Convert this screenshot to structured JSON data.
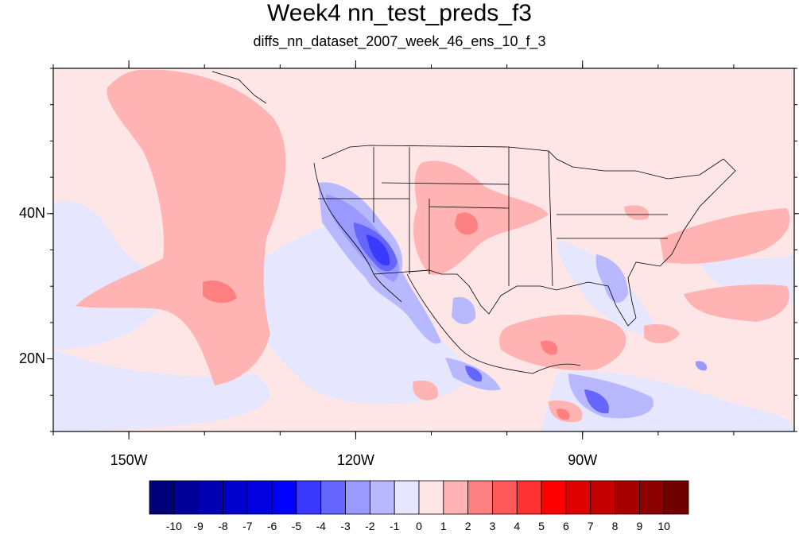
{
  "title": "Week4 nn_test_preds_f3",
  "subtitle": "diffs_nn_dataset_2007_week_46_ens_10_f_3",
  "map": {
    "extent": {
      "lon_min": -160,
      "lon_max": -62,
      "lat_min": 10,
      "lat_max": 60
    },
    "x_ticks": [
      {
        "lon": -150,
        "label": "150W"
      },
      {
        "lon": -120,
        "label": "120W"
      },
      {
        "lon": -90,
        "label": "90W"
      }
    ],
    "y_ticks": [
      {
        "lat": 40,
        "label": "40N"
      },
      {
        "lat": 20,
        "label": "20N"
      }
    ]
  },
  "colorbar": {
    "labels": [
      "-10",
      "-9",
      "-8",
      "-7",
      "-6",
      "-5",
      "-4",
      "-3",
      "-2",
      "-1",
      "0",
      "1",
      "2",
      "3",
      "4",
      "5",
      "6",
      "7",
      "8",
      "9",
      "10"
    ],
    "colors": [
      "#00007a",
      "#000099",
      "#0000b3",
      "#0000cc",
      "#0000e0",
      "#0000ff",
      "#3a3aff",
      "#6666ff",
      "#9999ff",
      "#b8b8ff",
      "#e6e6ff",
      "#ffe6e6",
      "#ffb3b3",
      "#ff8080",
      "#ff5959",
      "#ff3333",
      "#ff0000",
      "#e00000",
      "#c40000",
      "#a80000",
      "#8c0000",
      "#700000"
    ]
  }
}
